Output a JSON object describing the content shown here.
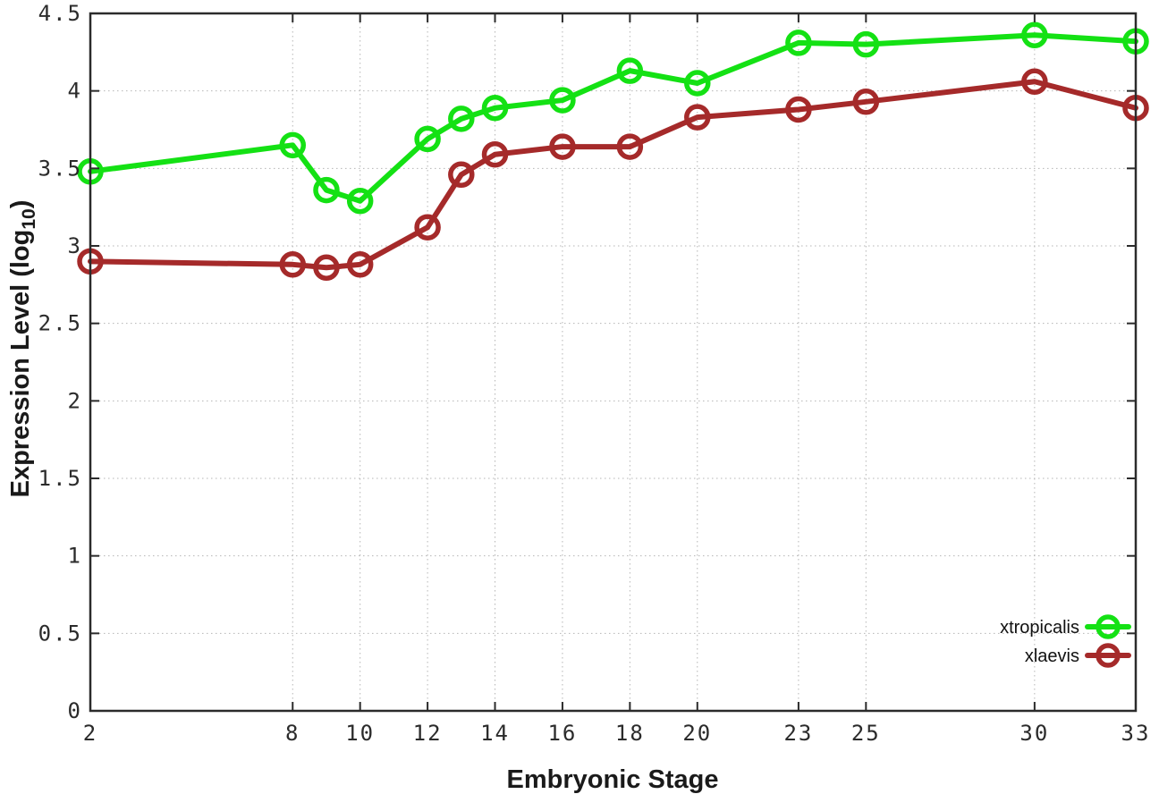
{
  "chart_data": {
    "type": "line",
    "title": "",
    "xlabel": "Embryonic Stage",
    "ylabel": {
      "text": "Expression Level (log",
      "subscript": "10",
      "suffix": ")"
    },
    "xlim": [
      2,
      33
    ],
    "ylim": [
      0,
      4.5
    ],
    "x_ticks": [
      2,
      8,
      10,
      12,
      14,
      16,
      18,
      20,
      23,
      25,
      30,
      33
    ],
    "y_ticks": [
      0,
      0.5,
      1,
      1.5,
      2,
      2.5,
      3,
      3.5,
      4,
      4.5
    ],
    "grid": true,
    "legend_position": "inside-bottom-right",
    "x": [
      2,
      8,
      9,
      10,
      12,
      13,
      14,
      16,
      18,
      20,
      23,
      25,
      30,
      33
    ],
    "series": [
      {
        "name": "xtropicalis",
        "color": "#14e114",
        "marker": "open-circle",
        "values": [
          3.48,
          3.65,
          3.36,
          3.29,
          3.69,
          3.82,
          3.89,
          3.94,
          4.13,
          4.05,
          4.31,
          4.3,
          4.36,
          4.32
        ]
      },
      {
        "name": "xlaevis",
        "color": "#a52a2a",
        "marker": "open-circle",
        "values": [
          2.9,
          2.88,
          2.86,
          2.88,
          3.12,
          3.46,
          3.59,
          3.64,
          3.64,
          3.83,
          3.88,
          3.93,
          4.06,
          3.89
        ]
      }
    ],
    "colors": {
      "background": "#ffffff",
      "border": "#2b2b2b",
      "grid": "#b5b5b5",
      "text": "#2b2b2b"
    }
  }
}
